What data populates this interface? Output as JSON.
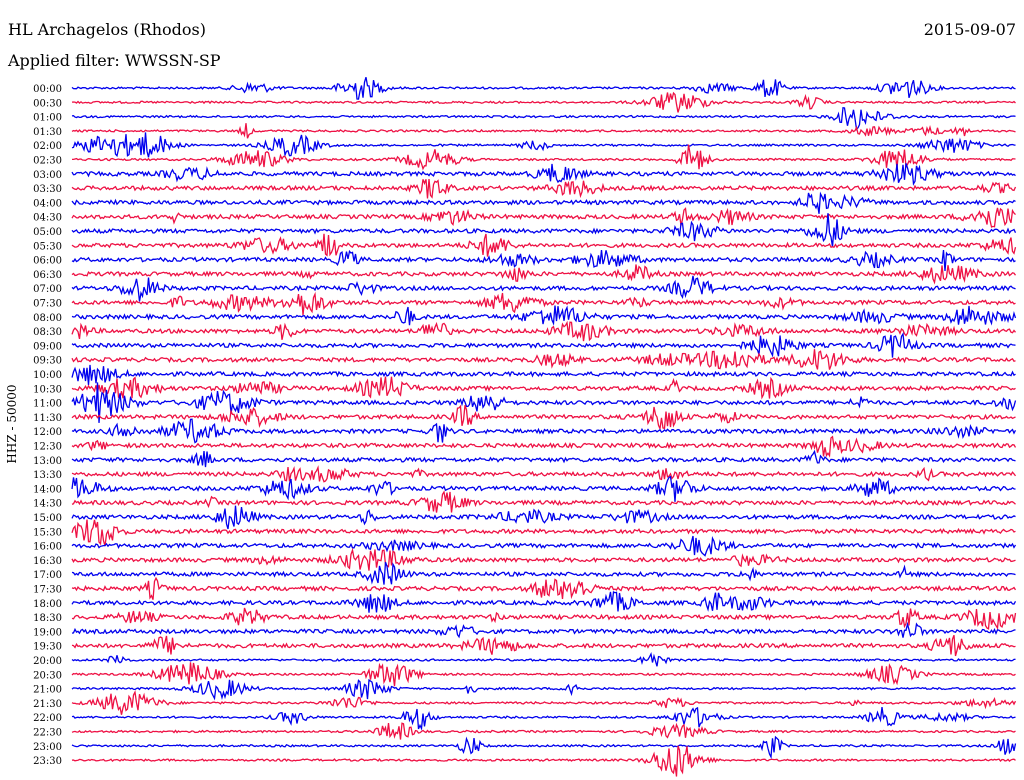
{
  "header": {
    "station": "HL Archagelos (Rhodos)",
    "date": "2015-09-07",
    "filter": "Applied filter: WWSSN-SP"
  },
  "chart_data": {
    "type": "line",
    "title": "HL Archagelos (Rhodos)",
    "ylabel": "HHZ - 50000",
    "xlabel": "",
    "grid": false,
    "legend": "none",
    "row_labels": [
      "00:00",
      "00:30",
      "01:00",
      "01:30",
      "02:00",
      "02:30",
      "03:00",
      "03:30",
      "04:00",
      "04:30",
      "05:00",
      "05:30",
      "06:00",
      "06:30",
      "07:00",
      "07:30",
      "08:00",
      "08:30",
      "09:00",
      "09:30",
      "10:00",
      "10:30",
      "11:00",
      "11:30",
      "12:00",
      "12:30",
      "13:00",
      "13:30",
      "14:00",
      "14:30",
      "15:00",
      "15:30",
      "16:00",
      "16:30",
      "17:00",
      "17:30",
      "18:00",
      "18:30",
      "19:00",
      "19:30",
      "20:00",
      "20:30",
      "21:00",
      "21:30",
      "22:00",
      "22:30",
      "23:00",
      "23:30"
    ],
    "series_colors": [
      "#0000ee",
      "#ee1144"
    ]
  }
}
